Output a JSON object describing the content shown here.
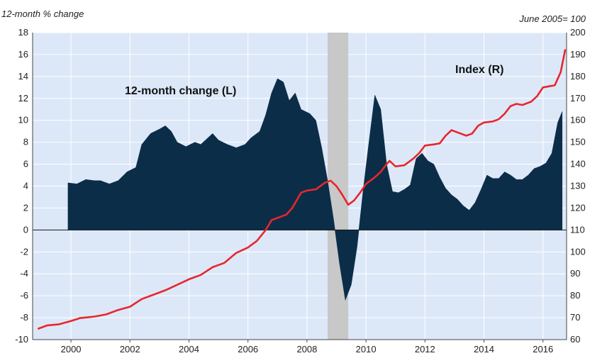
{
  "chart_data": {
    "type": "bar+line",
    "left_axis_label": "12-month % change",
    "right_axis_label": "June 2005= 100",
    "left_ylim": [
      -10,
      18
    ],
    "left_ticks": [
      "18",
      "16",
      "14",
      "12",
      "10",
      "8",
      "6",
      "4",
      "2",
      "0",
      "-2",
      "-4",
      "-6",
      "-8",
      "-10"
    ],
    "right_ylim": [
      60,
      200
    ],
    "right_ticks": [
      "200",
      "190",
      "180",
      "170",
      "160",
      "150",
      "140",
      "130",
      "120",
      "110",
      "100",
      "90",
      "80",
      "70",
      "60"
    ],
    "x_range": [
      1998.7,
      2016.8
    ],
    "x_ticks": [
      "2000",
      "2002",
      "2004",
      "2006",
      "2008",
      "2010",
      "2012",
      "2014",
      "2016"
    ],
    "grid": true,
    "shaded_period": [
      2008.7,
      2009.4
    ],
    "series": [
      {
        "name": "12-month change (L)",
        "type": "area",
        "color": "#0c2d48",
        "points": [
          [
            1999.9,
            4.3
          ],
          [
            2000.2,
            4.2
          ],
          [
            2000.5,
            4.6
          ],
          [
            2000.8,
            4.5
          ],
          [
            2001.0,
            4.5
          ],
          [
            2001.3,
            4.2
          ],
          [
            2001.6,
            4.5
          ],
          [
            2001.9,
            5.3
          ],
          [
            2002.2,
            5.7
          ],
          [
            2002.4,
            7.8
          ],
          [
            2002.7,
            8.8
          ],
          [
            2003.0,
            9.2
          ],
          [
            2003.2,
            9.5
          ],
          [
            2003.4,
            9.0
          ],
          [
            2003.6,
            8.0
          ],
          [
            2003.9,
            7.6
          ],
          [
            2004.2,
            8.0
          ],
          [
            2004.4,
            7.8
          ],
          [
            2004.6,
            8.3
          ],
          [
            2004.8,
            8.8
          ],
          [
            2005.0,
            8.2
          ],
          [
            2005.3,
            7.8
          ],
          [
            2005.6,
            7.5
          ],
          [
            2005.9,
            7.8
          ],
          [
            2006.1,
            8.4
          ],
          [
            2006.4,
            9.0
          ],
          [
            2006.6,
            10.5
          ],
          [
            2006.8,
            12.5
          ],
          [
            2007.0,
            13.8
          ],
          [
            2007.2,
            13.5
          ],
          [
            2007.4,
            11.8
          ],
          [
            2007.6,
            12.5
          ],
          [
            2007.8,
            11.0
          ],
          [
            2008.1,
            10.6
          ],
          [
            2008.3,
            10.0
          ],
          [
            2008.5,
            7.5
          ],
          [
            2008.7,
            4.5
          ],
          [
            2008.9,
            1.0
          ],
          [
            2009.1,
            -3.0
          ],
          [
            2009.3,
            -6.4
          ],
          [
            2009.5,
            -5.0
          ],
          [
            2009.7,
            -1.5
          ],
          [
            2009.9,
            3.5
          ],
          [
            2010.1,
            8.0
          ],
          [
            2010.3,
            12.3
          ],
          [
            2010.5,
            11.0
          ],
          [
            2010.7,
            6.0
          ],
          [
            2010.9,
            3.5
          ],
          [
            2011.1,
            3.4
          ],
          [
            2011.3,
            3.7
          ],
          [
            2011.5,
            4.1
          ],
          [
            2011.7,
            6.5
          ],
          [
            2011.9,
            7.0
          ],
          [
            2012.1,
            6.3
          ],
          [
            2012.3,
            6.0
          ],
          [
            2012.5,
            4.8
          ],
          [
            2012.7,
            3.8
          ],
          [
            2012.9,
            3.2
          ],
          [
            2013.1,
            2.8
          ],
          [
            2013.3,
            2.2
          ],
          [
            2013.5,
            1.8
          ],
          [
            2013.7,
            2.5
          ],
          [
            2013.9,
            3.7
          ],
          [
            2014.1,
            5.0
          ],
          [
            2014.3,
            4.7
          ],
          [
            2014.5,
            4.7
          ],
          [
            2014.7,
            5.3
          ],
          [
            2014.9,
            5.0
          ],
          [
            2015.1,
            4.6
          ],
          [
            2015.3,
            4.6
          ],
          [
            2015.5,
            5.0
          ],
          [
            2015.7,
            5.6
          ],
          [
            2015.9,
            5.8
          ],
          [
            2016.1,
            6.1
          ],
          [
            2016.3,
            7.0
          ],
          [
            2016.5,
            9.8
          ],
          [
            2016.65,
            10.8
          ]
        ]
      },
      {
        "name": "Index (R)",
        "type": "line",
        "color": "#e8262d",
        "points": [
          [
            1998.9,
            65.0
          ],
          [
            1999.2,
            66.5
          ],
          [
            1999.6,
            67.0
          ],
          [
            2000.0,
            68.5
          ],
          [
            2000.3,
            69.8
          ],
          [
            2000.8,
            70.5
          ],
          [
            2001.2,
            71.5
          ],
          [
            2001.6,
            73.5
          ],
          [
            2002.0,
            75.0
          ],
          [
            2002.4,
            78.5
          ],
          [
            2002.8,
            80.5
          ],
          [
            2003.2,
            82.5
          ],
          [
            2003.6,
            85.0
          ],
          [
            2004.0,
            87.5
          ],
          [
            2004.4,
            89.5
          ],
          [
            2004.8,
            93.0
          ],
          [
            2005.2,
            95.0
          ],
          [
            2005.6,
            99.5
          ],
          [
            2006.0,
            102.0
          ],
          [
            2006.3,
            105.0
          ],
          [
            2006.6,
            110.0
          ],
          [
            2006.8,
            114.5
          ],
          [
            2007.1,
            116.0
          ],
          [
            2007.3,
            117.0
          ],
          [
            2007.5,
            120.0
          ],
          [
            2007.8,
            127.0
          ],
          [
            2008.0,
            128.0
          ],
          [
            2008.3,
            128.5
          ],
          [
            2008.6,
            131.5
          ],
          [
            2008.8,
            132.5
          ],
          [
            2009.0,
            130.0
          ],
          [
            2009.2,
            126.0
          ],
          [
            2009.4,
            121.5
          ],
          [
            2009.6,
            123.5
          ],
          [
            2009.8,
            127.0
          ],
          [
            2010.0,
            131.0
          ],
          [
            2010.3,
            134.0
          ],
          [
            2010.5,
            136.5
          ],
          [
            2010.7,
            140.0
          ],
          [
            2010.8,
            141.5
          ],
          [
            2011.0,
            139.0
          ],
          [
            2011.3,
            139.5
          ],
          [
            2011.6,
            142.5
          ],
          [
            2011.8,
            145.0
          ],
          [
            2012.0,
            148.5
          ],
          [
            2012.3,
            149.0
          ],
          [
            2012.5,
            149.5
          ],
          [
            2012.7,
            153.0
          ],
          [
            2012.9,
            155.5
          ],
          [
            2013.1,
            154.5
          ],
          [
            2013.4,
            153.0
          ],
          [
            2013.6,
            154.0
          ],
          [
            2013.8,
            157.5
          ],
          [
            2014.0,
            159.0
          ],
          [
            2014.3,
            159.5
          ],
          [
            2014.5,
            160.5
          ],
          [
            2014.7,
            163.0
          ],
          [
            2014.9,
            166.5
          ],
          [
            2015.1,
            167.5
          ],
          [
            2015.3,
            167.0
          ],
          [
            2015.6,
            168.5
          ],
          [
            2015.8,
            171.0
          ],
          [
            2016.0,
            175.0
          ],
          [
            2016.2,
            175.5
          ],
          [
            2016.4,
            176.0
          ],
          [
            2016.6,
            182.0
          ],
          [
            2016.75,
            192.0
          ]
        ]
      }
    ],
    "annotations": [
      "12-month change (L)",
      "Index (R)"
    ]
  }
}
